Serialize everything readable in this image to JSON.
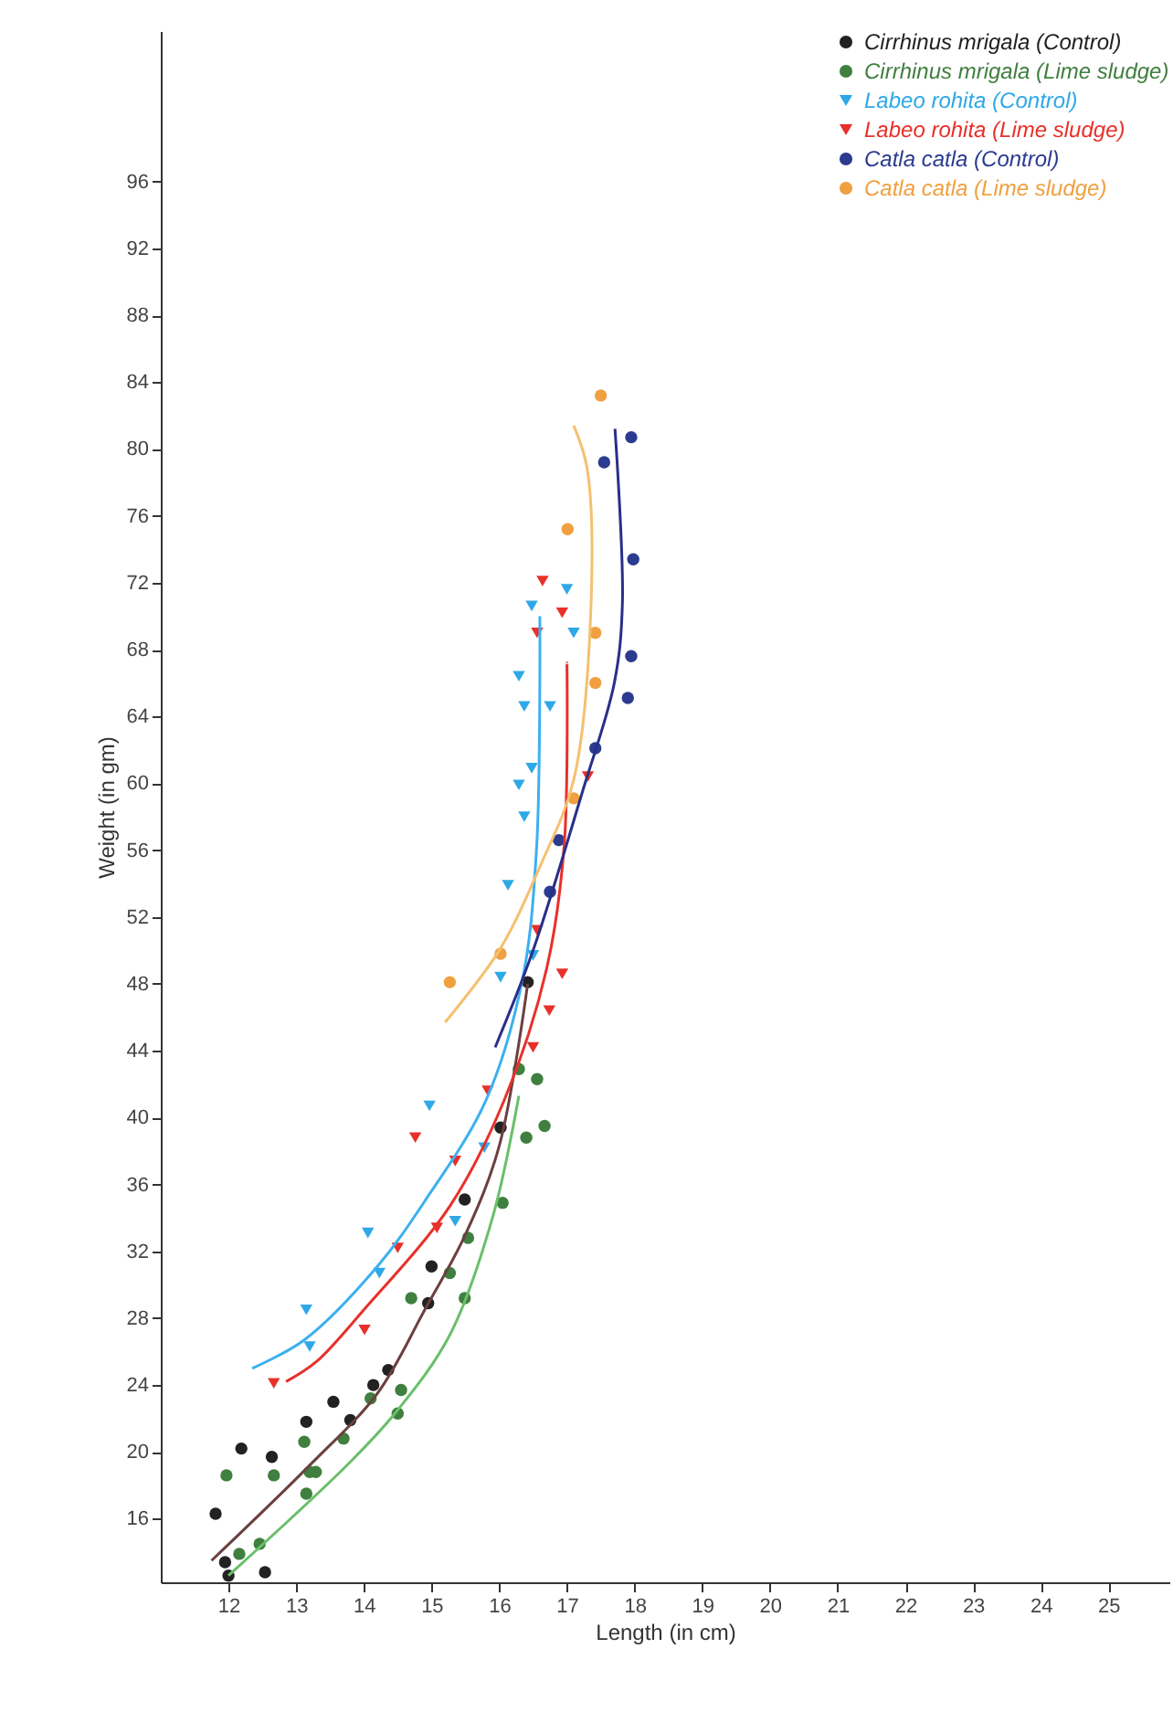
{
  "chart_data": {
    "type": "scatter",
    "xlabel": "Length (in cm)",
    "ylabel": "Weight (in gm)",
    "xlim": [
      11,
      25.9
    ],
    "ylim": [
      12.2,
      105
    ],
    "xticks": [
      12,
      13,
      14,
      15,
      16,
      17,
      18,
      19,
      20,
      21,
      22,
      23,
      24,
      25
    ],
    "yticks": [
      16,
      20,
      24,
      28,
      32,
      36,
      40,
      44,
      48,
      52,
      56,
      60,
      64,
      68,
      72,
      76,
      80,
      84,
      88,
      92,
      96
    ],
    "grid": false,
    "legend": "top right",
    "series": [
      {
        "name": "Cirrhinus mrigala (Control)",
        "color": "#222222",
        "marker": "circle",
        "x": [
          11.81,
          11.95,
          12.0,
          12.54,
          12.19,
          12.64,
          13.15,
          13.55,
          13.8,
          14.14,
          14.36,
          14.95,
          15.0,
          15.49,
          16.02,
          16.42
        ],
        "values": [
          16.3,
          13.4,
          12.6,
          12.8,
          20.2,
          19.7,
          21.8,
          23.0,
          21.9,
          24.0,
          24.9,
          28.9,
          31.1,
          35.1,
          39.4,
          48.1
        ]
      },
      {
        "name": "Cirrhinus mrigala (Lime sludge)",
        "color": "#3f7f3f",
        "marker": "circle",
        "x": [
          11.97,
          12.67,
          13.15,
          13.29,
          12.16,
          12.46,
          13.12,
          13.2,
          13.7,
          14.1,
          14.55,
          14.5,
          14.7,
          15.27,
          15.49,
          15.54,
          16.05,
          16.29,
          16.56,
          16.4,
          16.67
        ],
        "values": [
          18.6,
          18.6,
          17.5,
          18.8,
          13.9,
          14.5,
          20.6,
          18.8,
          20.8,
          23.2,
          23.7,
          22.3,
          29.2,
          30.7,
          29.2,
          32.8,
          34.9,
          42.9,
          42.3,
          38.8,
          39.5
        ]
      },
      {
        "name": "Labeo rohita (Control)",
        "color": "#2ea8e6",
        "marker": "triangle",
        "x": [
          13.15,
          13.2,
          14.06,
          14.23,
          14.97,
          15.35,
          15.78,
          16.02,
          16.5,
          16.13,
          16.37,
          16.29,
          16.48,
          16.29,
          16.37,
          16.75,
          16.48,
          17.0,
          17.1
        ],
        "values": [
          28.5,
          26.3,
          33.1,
          30.7,
          40.7,
          33.8,
          38.2,
          48.4,
          49.7,
          53.9,
          58.0,
          59.9,
          60.9,
          66.4,
          64.6,
          64.6,
          70.6,
          71.6,
          69.0
        ]
      },
      {
        "name": "Labeo rohita (Lime sludge)",
        "color": "#e8302a",
        "marker": "triangle",
        "x": [
          12.67,
          14.01,
          14.5,
          15.08,
          14.76,
          15.35,
          15.83,
          16.5,
          16.74,
          16.93,
          16.64,
          16.93,
          16.56,
          17.31,
          16.56
        ],
        "values": [
          24.1,
          27.3,
          32.2,
          33.4,
          38.8,
          37.4,
          41.6,
          44.2,
          46.4,
          48.6,
          72.1,
          70.2,
          69.0,
          60.4,
          51.2
        ]
      },
      {
        "name": "Catla catla (Control)",
        "color": "#2b3b8f",
        "marker": "circle",
        "x": [
          17.95,
          17.55,
          17.98,
          17.95,
          17.9,
          17.42,
          16.88,
          16.75
        ],
        "values": [
          80.7,
          79.2,
          73.4,
          67.6,
          65.1,
          62.1,
          56.6,
          53.5
        ]
      },
      {
        "name": "Catla catla (Lime sludge)",
        "color": "#f0a040",
        "marker": "circle",
        "x": [
          17.5,
          17.01,
          17.42,
          17.42,
          17.1,
          16.02,
          15.27
        ],
        "values": [
          83.2,
          75.2,
          69.0,
          66.0,
          59.1,
          49.8,
          48.1
        ]
      },
      {
        "type": "line",
        "color": "#6b4040",
        "x": [
          11.75,
          13.2,
          14.2,
          14.9,
          15.5,
          16.0,
          16.42
        ],
        "values": [
          13.5,
          19.2,
          23.5,
          28.5,
          33,
          38.3,
          48
        ]
      },
      {
        "type": "line",
        "color": "#6abf6a",
        "x": [
          12.0,
          13.8,
          14.5,
          15.27,
          15.9,
          16.29
        ],
        "values": [
          12.6,
          19.4,
          22.5,
          27,
          34,
          41.3
        ]
      },
      {
        "type": "line",
        "color": "#3cb0f0",
        "x": [
          12.35,
          13.12,
          14.2,
          14.9,
          15.8,
          16.34,
          16.55,
          16.6
        ],
        "values": [
          25,
          26.7,
          31.1,
          35,
          41,
          48.2,
          56,
          70
        ]
      },
      {
        "type": "line",
        "color": "#e8302a",
        "x": [
          12.85,
          13.3,
          14.0,
          15.27,
          16.07,
          16.7,
          16.96,
          17.0
        ],
        "values": [
          24.2,
          25.4,
          28.5,
          34.7,
          41,
          48.9,
          56.3,
          67.2
        ]
      },
      {
        "type": "line",
        "color": "#2a2f8a",
        "x": [
          15.94,
          16.5,
          17.23,
          17.7,
          17.82,
          17.71
        ],
        "values": [
          44.2,
          50,
          59.5,
          66,
          70.8,
          81.2
        ]
      },
      {
        "type": "line",
        "color": "#f5c070",
        "x": [
          15.2,
          16.0,
          16.6,
          17.1,
          17.35,
          17.3,
          17.1
        ],
        "values": [
          45.7,
          50,
          55,
          60.2,
          70,
          78.8,
          81.4
        ]
      }
    ]
  }
}
